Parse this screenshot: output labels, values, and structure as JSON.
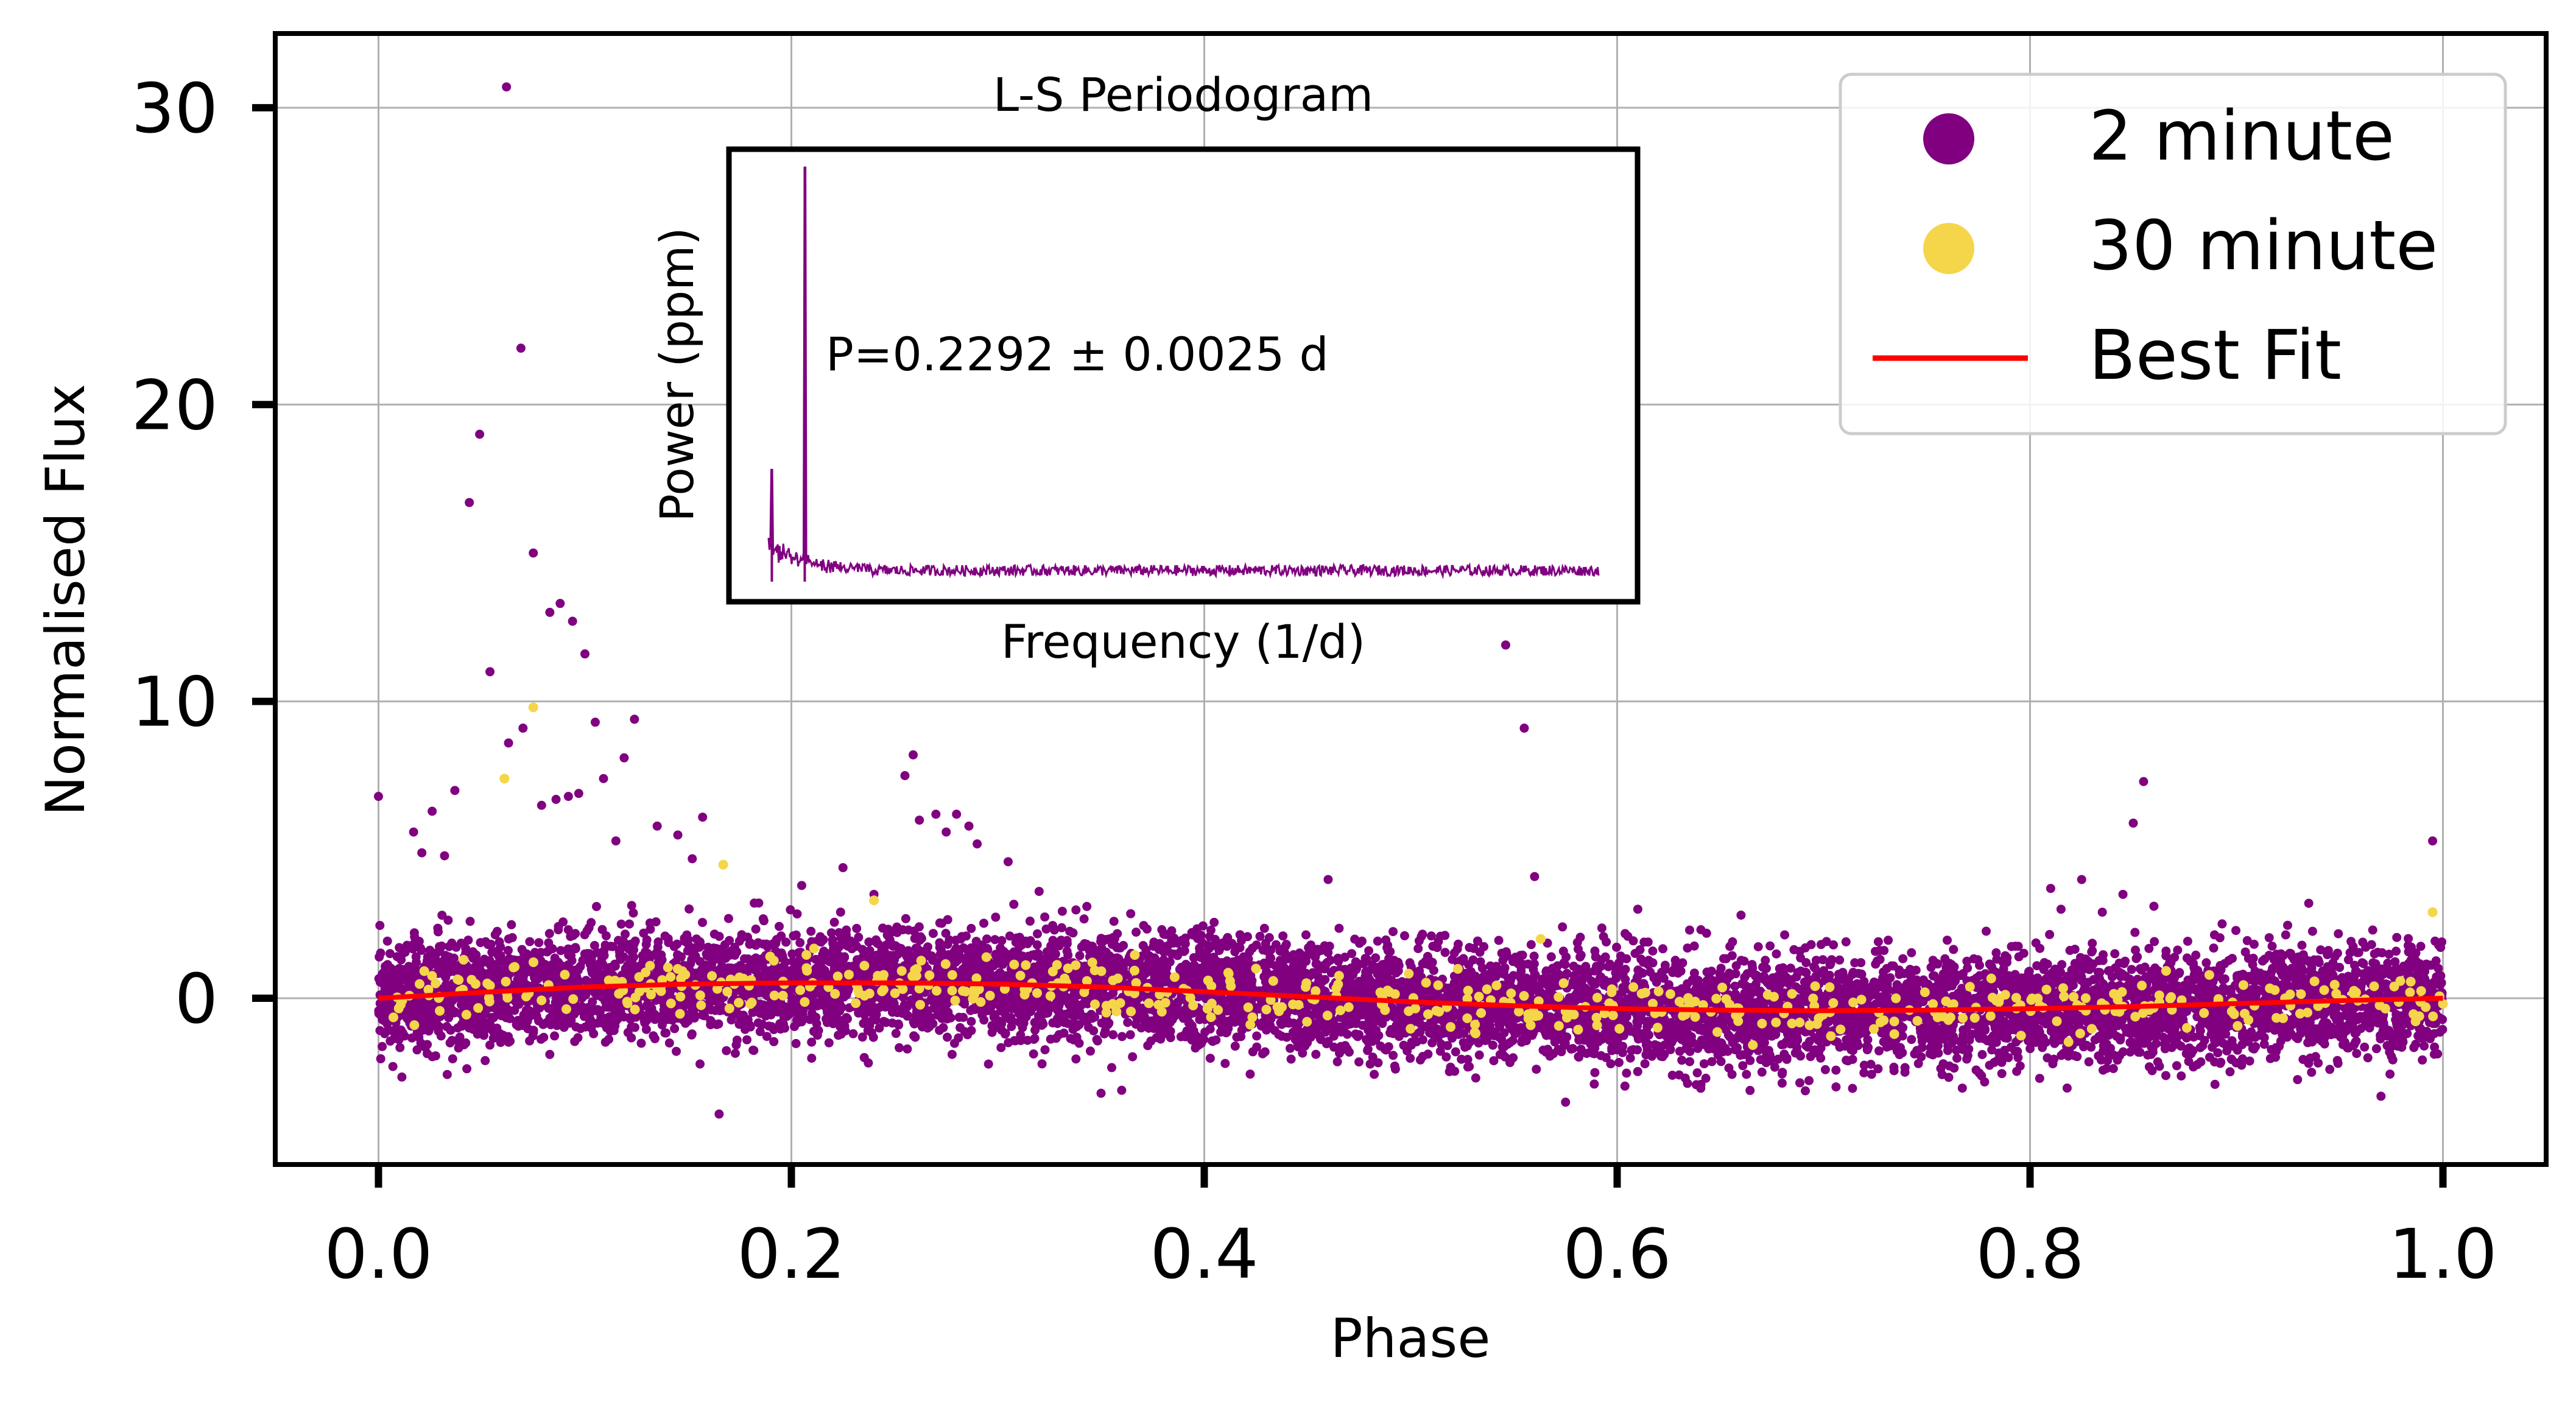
{
  "chart_data": {
    "type": "scatter",
    "xlabel": "Phase",
    "ylabel": "Normalised Flux",
    "xlim": [
      -0.05,
      1.05
    ],
    "ylim": [
      -5.6,
      32.5
    ],
    "xticks": [
      "0.0",
      "0.2",
      "0.4",
      "0.6",
      "0.8",
      "1.0"
    ],
    "yticks": [
      "0",
      "10",
      "20",
      "30"
    ],
    "grid": true,
    "legend_position": "top-right",
    "series": [
      {
        "name": "2 minute",
        "kind": "scatter",
        "color": "#800080",
        "band": {
          "x_range": [
            0.0,
            1.0
          ],
          "scatter_std": 0.9,
          "n_points": 9000
        },
        "outliers": [
          [
            0.0,
            6.8
          ],
          [
            0.017,
            5.6
          ],
          [
            0.021,
            4.9
          ],
          [
            0.026,
            6.3
          ],
          [
            0.032,
            4.8
          ],
          [
            0.037,
            7.0
          ],
          [
            0.044,
            16.7
          ],
          [
            0.049,
            19.0
          ],
          [
            0.054,
            11.0
          ],
          [
            0.062,
            30.7
          ],
          [
            0.063,
            8.6
          ],
          [
            0.069,
            21.9
          ],
          [
            0.07,
            9.1
          ],
          [
            0.075,
            15.0
          ],
          [
            0.079,
            6.5
          ],
          [
            0.083,
            13.0
          ],
          [
            0.086,
            6.7
          ],
          [
            0.088,
            13.3
          ],
          [
            0.092,
            6.8
          ],
          [
            0.094,
            12.7
          ],
          [
            0.097,
            6.9
          ],
          [
            0.1,
            11.6
          ],
          [
            0.105,
            9.3
          ],
          [
            0.109,
            7.4
          ],
          [
            0.115,
            5.3
          ],
          [
            0.119,
            8.1
          ],
          [
            0.124,
            9.4
          ],
          [
            0.135,
            5.8
          ],
          [
            0.145,
            5.5
          ],
          [
            0.152,
            4.7
          ],
          [
            0.157,
            6.1
          ],
          [
            0.165,
            -3.9
          ],
          [
            0.205,
            3.8
          ],
          [
            0.225,
            4.4
          ],
          [
            0.24,
            3.5
          ],
          [
            0.255,
            7.5
          ],
          [
            0.259,
            8.2
          ],
          [
            0.262,
            6.0
          ],
          [
            0.27,
            6.2
          ],
          [
            0.275,
            5.6
          ],
          [
            0.28,
            6.2
          ],
          [
            0.286,
            5.8
          ],
          [
            0.29,
            5.2
          ],
          [
            0.305,
            4.6
          ],
          [
            0.32,
            3.6
          ],
          [
            0.35,
            -3.2
          ],
          [
            0.36,
            -3.1
          ],
          [
            0.46,
            4.0
          ],
          [
            0.546,
            11.9
          ],
          [
            0.555,
            9.1
          ],
          [
            0.56,
            4.1
          ],
          [
            0.575,
            -3.5
          ],
          [
            0.61,
            3.0
          ],
          [
            0.66,
            2.8
          ],
          [
            0.81,
            3.7
          ],
          [
            0.815,
            3.0
          ],
          [
            0.825,
            4.0
          ],
          [
            0.835,
            2.9
          ],
          [
            0.845,
            3.5
          ],
          [
            0.85,
            5.9
          ],
          [
            0.855,
            7.3
          ],
          [
            0.86,
            3.1
          ],
          [
            0.935,
            3.2
          ],
          [
            0.97,
            -3.3
          ],
          [
            0.995,
            5.3
          ]
        ]
      },
      {
        "name": "30 minute",
        "kind": "scatter",
        "color": "#f5d54a",
        "band": {
          "x_range": [
            0.0,
            1.0
          ],
          "scatter_std": 0.45,
          "n_points": 480
        },
        "outliers": [
          [
            0.061,
            7.4
          ],
          [
            0.075,
            9.8
          ],
          [
            0.167,
            4.5
          ],
          [
            0.24,
            3.3
          ],
          [
            0.563,
            2.0
          ],
          [
            0.995,
            2.9
          ]
        ]
      },
      {
        "name": "Best Fit",
        "kind": "line",
        "color": "#ff0000",
        "x": [
          0.0,
          0.05,
          0.1,
          0.15,
          0.2,
          0.25,
          0.3,
          0.35,
          0.4,
          0.45,
          0.5,
          0.55,
          0.6,
          0.65,
          0.7,
          0.75,
          0.8,
          0.85,
          0.9,
          0.95,
          1.0
        ],
        "y": [
          0.0,
          0.2,
          0.38,
          0.48,
          0.52,
          0.52,
          0.48,
          0.38,
          0.22,
          0.05,
          -0.12,
          -0.25,
          -0.35,
          -0.4,
          -0.42,
          -0.4,
          -0.35,
          -0.28,
          -0.18,
          -0.08,
          0.0
        ]
      }
    ],
    "inset": {
      "type": "line",
      "title": "L-S Periodogram",
      "xlabel": "Frequency (1/d)",
      "ylabel": "Power (ppm)",
      "annotation": "P=0.2292 ± 0.0025 d",
      "color": "#800080",
      "shape": {
        "main_peak_freq": 4.363,
        "secondary_peak_freq": 0.4,
        "freq_range": [
          0.0,
          100.0
        ],
        "main_peak_power": 1.0,
        "secondary_peak_power": 0.27,
        "noise_floor": 0.04
      }
    }
  }
}
